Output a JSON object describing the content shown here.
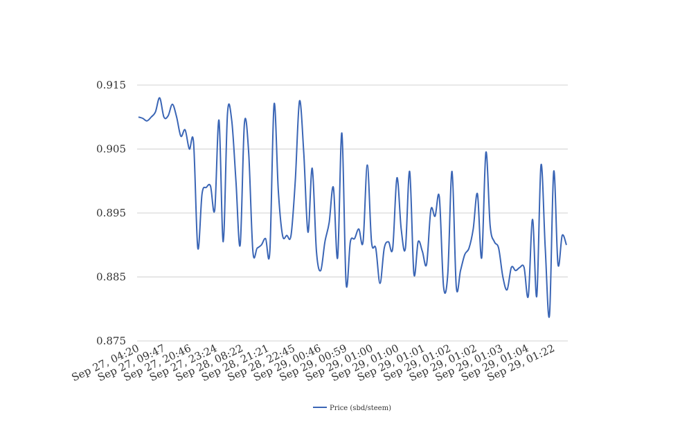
{
  "chart_data": {
    "type": "line",
    "title": "",
    "xlabel": "",
    "ylabel": "",
    "ylim": [
      0.875,
      0.915
    ],
    "yticks": [
      0.875,
      0.885,
      0.895,
      0.905,
      0.915
    ],
    "ytick_labels": [
      "0.875",
      "0.885",
      "0.895",
      "0.905",
      "0.915"
    ],
    "grid": true,
    "legend_position": "bottom",
    "xtick_labels": [
      "Sep 27, 04:20",
      "Sep 27, 09:47",
      "Sep 27, 20:46",
      "Sep 27, 23:24",
      "Sep 28, 08:22",
      "Sep 28, 21:21",
      "Sep 28, 22:45",
      "Sep 29, 00:46",
      "Sep 29, 00:59",
      "Sep 29, 01:00",
      "Sep 29, 01:00",
      "Sep 29, 01:01",
      "Sep 29, 01:02",
      "Sep 29, 01:02",
      "Sep 29, 01:03",
      "Sep 29, 01:04",
      "Sep 29, 01:22"
    ],
    "series": [
      {
        "name": "Price (sbd/steem)",
        "color": "#3a65b5",
        "values": [
          0.91,
          0.9098,
          0.9094,
          0.91,
          0.9108,
          0.913,
          0.91,
          0.9102,
          0.912,
          0.91,
          0.907,
          0.908,
          0.905,
          0.906,
          0.8895,
          0.898,
          0.899,
          0.8992,
          0.8955,
          0.9095,
          0.8905,
          0.9105,
          0.9095,
          0.9,
          0.89,
          0.909,
          0.9045,
          0.889,
          0.8895,
          0.89,
          0.891,
          0.889,
          0.912,
          0.8985,
          0.8915,
          0.8915,
          0.8915,
          0.9,
          0.9125,
          0.9045,
          0.892,
          0.902,
          0.889,
          0.886,
          0.8905,
          0.8935,
          0.899,
          0.888,
          0.9075,
          0.884,
          0.8905,
          0.891,
          0.8925,
          0.8905,
          0.9025,
          0.8905,
          0.8895,
          0.884,
          0.8895,
          0.8905,
          0.8895,
          0.9005,
          0.8925,
          0.8895,
          0.9015,
          0.8855,
          0.8905,
          0.889,
          0.887,
          0.8955,
          0.8945,
          0.8975,
          0.8835,
          0.8855,
          0.9015,
          0.8835,
          0.886,
          0.8885,
          0.8895,
          0.8925,
          0.898,
          0.888,
          0.9045,
          0.893,
          0.8905,
          0.8895,
          0.885,
          0.883,
          0.8865,
          0.886,
          0.8865,
          0.8865,
          0.882,
          0.894,
          0.882,
          0.9025,
          0.8895,
          0.879,
          0.9015,
          0.887,
          0.8915,
          0.89
        ]
      }
    ]
  }
}
